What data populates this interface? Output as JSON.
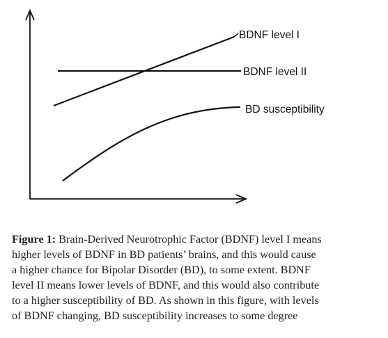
{
  "diagram": {
    "curves": [
      {
        "id": "bdnf-level-1",
        "label": "BDNF level I"
      },
      {
        "id": "bdnf-level-2",
        "label": "BDNF level II"
      },
      {
        "id": "bd-susceptibility",
        "label": "BD susceptibility"
      }
    ],
    "colors": {
      "stroke": "#111111",
      "text": "#111111",
      "caption": "#222222"
    }
  },
  "caption": {
    "label": "Figure 1:",
    "lines": [
      " Brain-Derived Neurotrophic Factor (BDNF) level I means",
      "higher levels of BDNF in BD patients’ brains, and this would cause",
      "a higher chance for Bipolar Disorder (BD), to some extent. BDNF",
      "level II means lower levels of BDNF, and this would also contribute",
      "to a higher susceptibility of BD. As shown in this figure, with levels",
      "of BDNF changing, BD susceptibility increases to some degree"
    ]
  }
}
